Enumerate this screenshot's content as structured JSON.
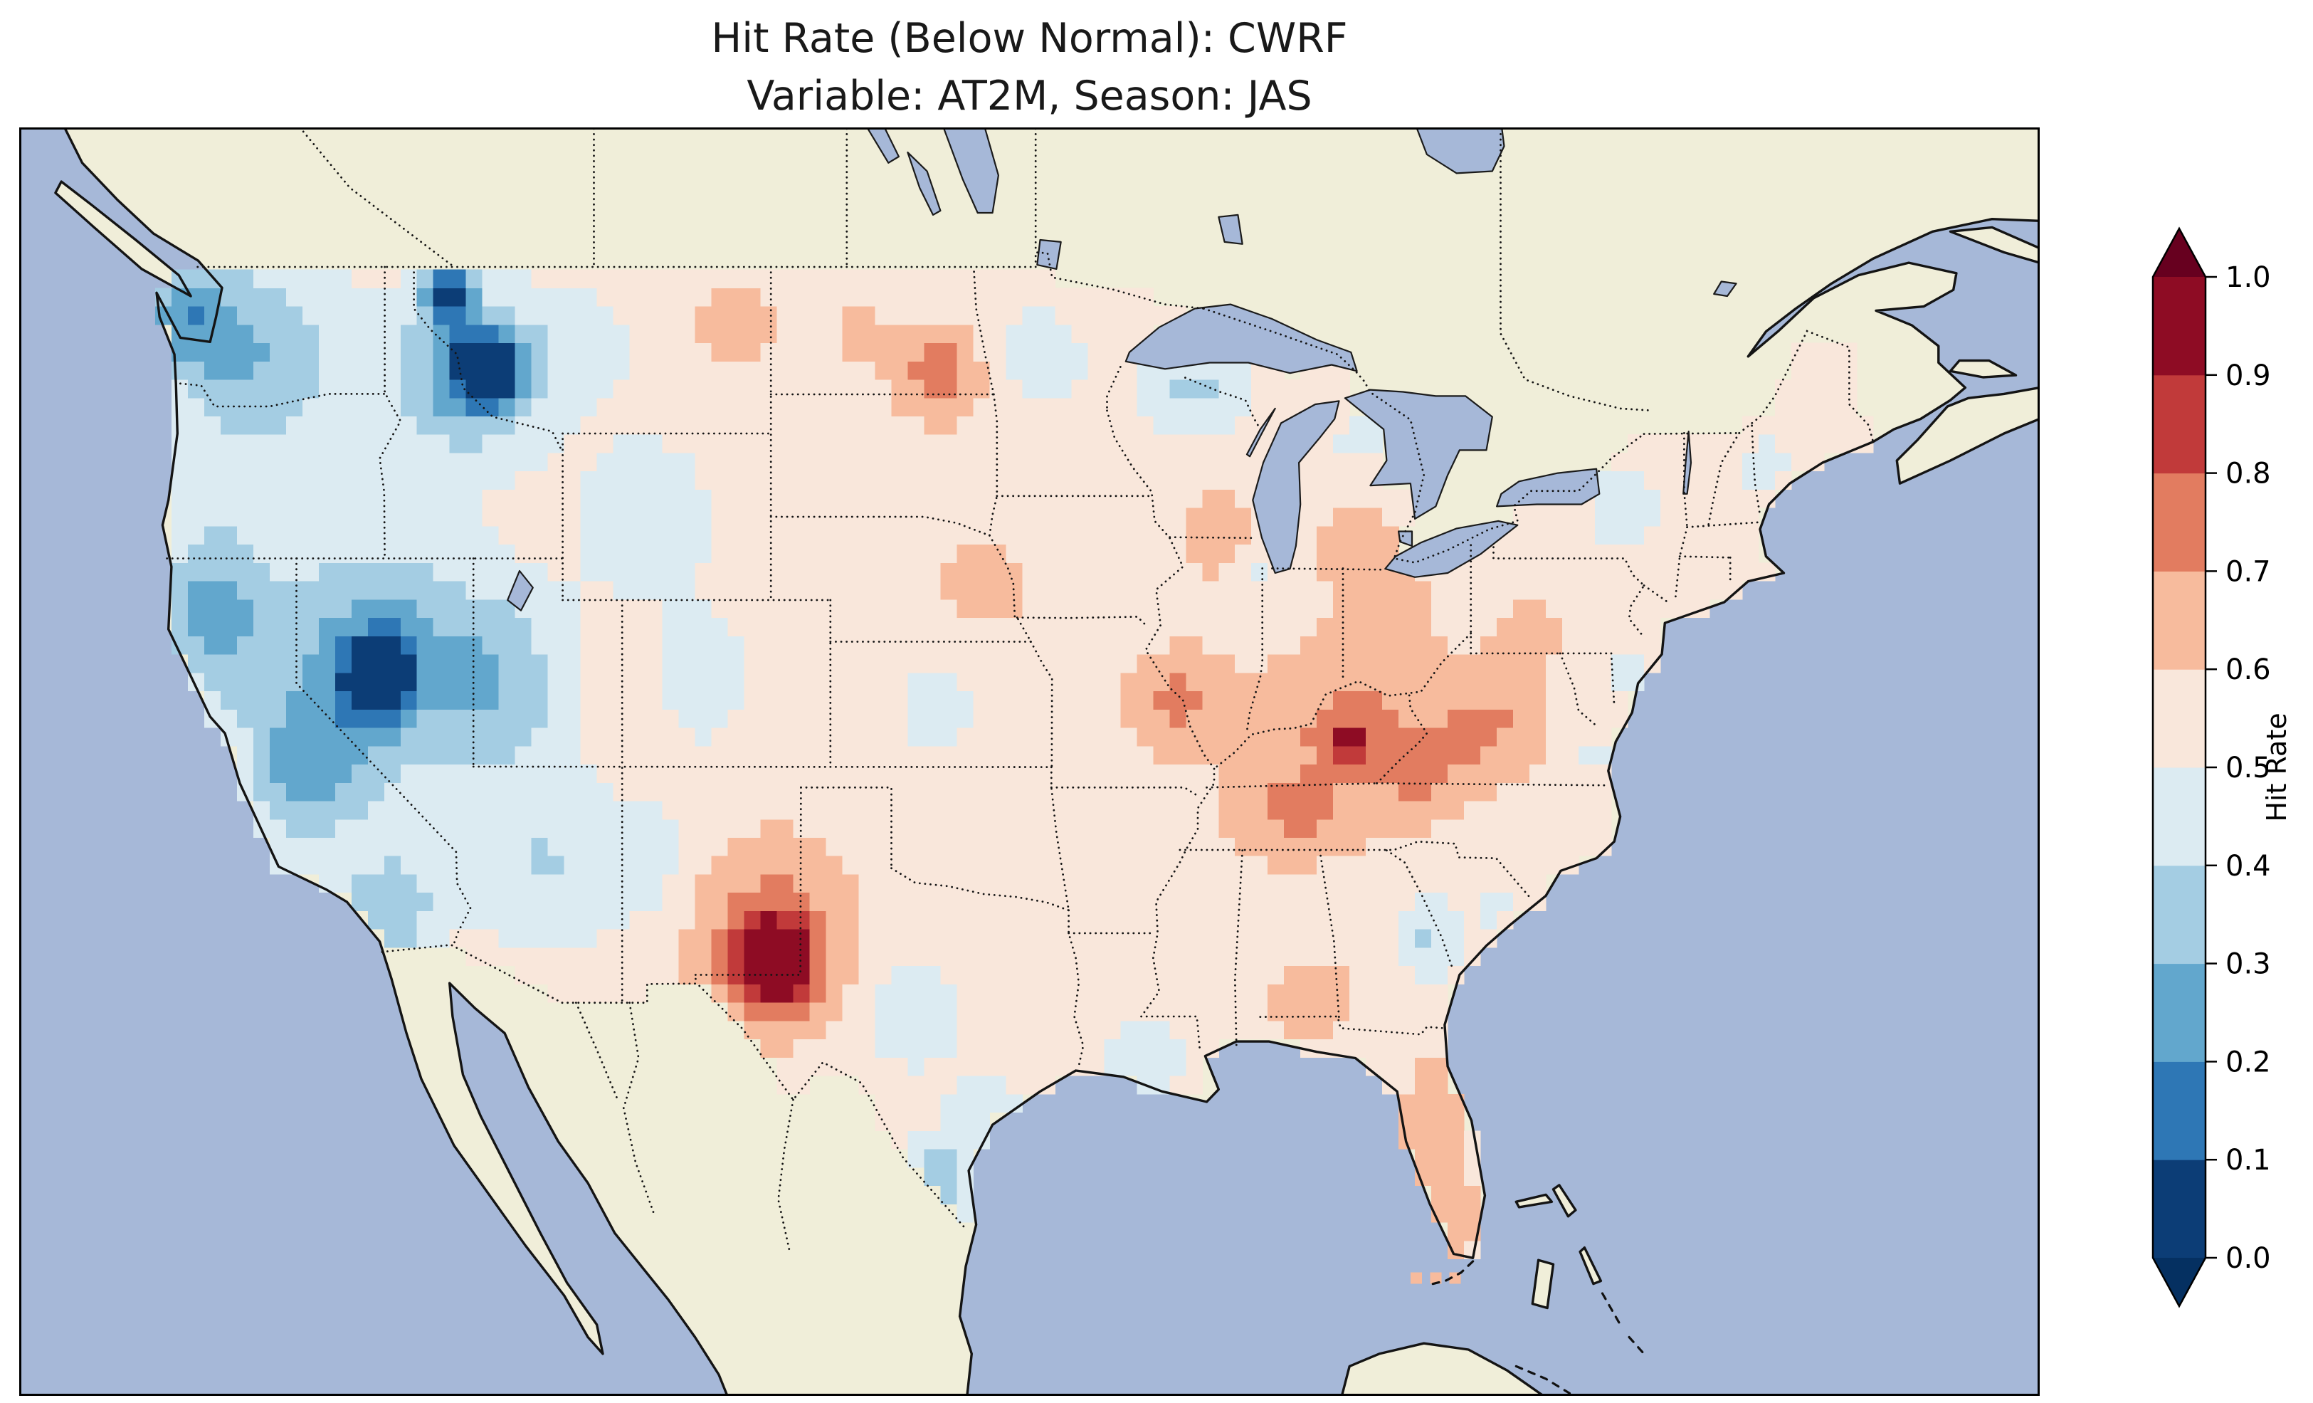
{
  "title": {
    "line1": "Hit Rate (Below Normal): CWRF",
    "line2": "Variable: AT2M, Season: JAS"
  },
  "map": {
    "ocean_color": "#a6b8d8",
    "land_color": "#f0eed9",
    "coast_color": "#141414",
    "border_color": "#141414",
    "frame_color": "#000000"
  },
  "colorbar": {
    "label": "Hit Rate",
    "ticks": [
      "0.0",
      "0.1",
      "0.2",
      "0.3",
      "0.4",
      "0.5",
      "0.6",
      "0.7",
      "0.8",
      "0.9",
      "1.0"
    ],
    "segment_colors": [
      "#0c3d76",
      "#2e77b5",
      "#62a7cd",
      "#a4cde3",
      "#dcebf2",
      "#f9e7db",
      "#f7bb9d",
      "#e27c60",
      "#c13a3a",
      "#8e0c24"
    ],
    "under_arrow_color": "#053061",
    "over_arrow_color": "#67001f"
  },
  "chart_data": {
    "type": "heatmap",
    "metric": "Hit Rate (Below Normal)",
    "model": "CWRF",
    "variable": "AT2M",
    "season": "JAS",
    "domain": "Contiguous United States",
    "value_range": [
      0.0,
      1.0
    ],
    "bin_width": 0.1,
    "colorbar_ticks": [
      0.0,
      0.1,
      0.2,
      0.3,
      0.4,
      0.5,
      0.6,
      0.7,
      0.8,
      0.9,
      1.0
    ],
    "base_value": 0.56,
    "grid_step_deg": {
      "lon": 0.55,
      "lat": 0.44
    },
    "regions": [
      {
        "name": "pacific-northwest",
        "lon": -121.5,
        "lat": 46.8,
        "slon": 3.0,
        "slat": 2.6,
        "value": 0.3
      },
      {
        "name": "washington-coast",
        "lon": -123.8,
        "lat": 47.8,
        "slon": 1.5,
        "slat": 1.2,
        "value": 0.33
      },
      {
        "name": "northern-california",
        "lon": -122.8,
        "lat": 40.8,
        "slon": 2.0,
        "slat": 2.2,
        "value": 0.28
      },
      {
        "name": "central-california",
        "lon": -119.8,
        "lat": 36.8,
        "slon": 2.2,
        "slat": 1.9,
        "value": 0.32
      },
      {
        "name": "southern-california",
        "lon": -116.8,
        "lat": 33.6,
        "slon": 1.8,
        "slat": 1.4,
        "value": 0.33
      },
      {
        "name": "nevada-broad",
        "lon": -117.4,
        "lat": 39.6,
        "slon": 3.4,
        "slat": 2.9,
        "value": 0.24
      },
      {
        "name": "nevada-dark-core",
        "lon": -117.3,
        "lat": 39.2,
        "slon": 1.05,
        "slat": 0.85,
        "value": 0.06
      },
      {
        "name": "montana-idaho-broad",
        "lon": -114.3,
        "lat": 46.4,
        "slon": 2.7,
        "slat": 2.1,
        "value": 0.26
      },
      {
        "name": "montana-idaho-dark-core",
        "lon": -113.6,
        "lat": 46.6,
        "slon": 1.15,
        "slat": 0.85,
        "value": 0.09
      },
      {
        "name": "northwest-montana-spot",
        "lon": -114.9,
        "lat": 48.4,
        "slon": 0.85,
        "slat": 0.7,
        "value": 0.17
      },
      {
        "name": "utah",
        "lon": -113.0,
        "lat": 39.0,
        "slon": 2.4,
        "slat": 2.4,
        "value": 0.36
      },
      {
        "name": "arizona",
        "lon": -111.6,
        "lat": 34.6,
        "slon": 2.4,
        "slat": 2.1,
        "value": 0.4
      },
      {
        "name": "wyoming",
        "lon": -108.3,
        "lat": 43.0,
        "slon": 2.3,
        "slat": 2.0,
        "value": 0.42
      },
      {
        "name": "colorado-rockies",
        "lon": -106.4,
        "lat": 39.2,
        "slon": 1.4,
        "slat": 1.6,
        "value": 0.42
      },
      {
        "name": "western-new-mexico",
        "lon": -108.2,
        "lat": 34.8,
        "slon": 1.4,
        "slat": 1.7,
        "value": 0.46
      },
      {
        "name": "eastern-colorado",
        "lon": -103.3,
        "lat": 39.6,
        "slon": 1.8,
        "slat": 1.6,
        "value": 0.52
      },
      {
        "name": "central-montana",
        "lon": -110.3,
        "lat": 47.2,
        "slon": 1.8,
        "slat": 1.4,
        "value": 0.46
      },
      {
        "name": "northeast-montana",
        "lon": -105.3,
        "lat": 47.6,
        "slon": 1.7,
        "slat": 1.1,
        "value": 0.63
      },
      {
        "name": "north-dakota-high",
        "lon": -98.4,
        "lat": 46.4,
        "slon": 1.35,
        "slat": 1.1,
        "value": 0.76
      },
      {
        "name": "west-north-dakota",
        "lon": -101.0,
        "lat": 47.3,
        "slon": 1.4,
        "slat": 1.0,
        "value": 0.62
      },
      {
        "name": "south-dakota",
        "lon": -100.3,
        "lat": 44.3,
        "slon": 1.9,
        "slat": 1.4,
        "value": 0.54
      },
      {
        "name": "nebraska-iowa",
        "lon": -96.8,
        "lat": 41.4,
        "slon": 2.2,
        "slat": 1.4,
        "value": 0.62
      },
      {
        "name": "kansas",
        "lon": -98.4,
        "lat": 38.4,
        "slon": 1.9,
        "slat": 1.4,
        "value": 0.47
      },
      {
        "name": "oklahoma",
        "lon": -98.8,
        "lat": 35.4,
        "slon": 1.6,
        "slat": 1.2,
        "value": 0.5
      },
      {
        "name": "central-texas",
        "lon": -99.3,
        "lat": 31.0,
        "slon": 1.6,
        "slat": 1.3,
        "value": 0.41
      },
      {
        "name": "south-texas",
        "lon": -98.4,
        "lat": 26.9,
        "slon": 1.25,
        "slat": 1.15,
        "value": 0.33
      },
      {
        "name": "texas-coast",
        "lon": -96.9,
        "lat": 28.7,
        "slon": 1.3,
        "slat": 1.0,
        "value": 0.44
      },
      {
        "name": "se-new-mexico-dark-core",
        "lon": -103.9,
        "lat": 32.3,
        "slon": 1.25,
        "slat": 1.05,
        "value": 0.98
      },
      {
        "name": "se-new-mexico-ring",
        "lon": -104.1,
        "lat": 32.9,
        "slon": 2.5,
        "slat": 2.1,
        "value": 0.76
      },
      {
        "name": "louisiana-gulf",
        "lon": -91.4,
        "lat": 30.0,
        "slon": 1.8,
        "slat": 0.95,
        "value": 0.44
      },
      {
        "name": "missouri-illinois",
        "lon": -90.4,
        "lat": 38.6,
        "slon": 1.45,
        "slat": 1.15,
        "value": 0.72
      },
      {
        "name": "ohio-valley",
        "lon": -84.6,
        "lat": 38.0,
        "slon": 3.4,
        "slat": 1.8,
        "value": 0.72
      },
      {
        "name": "kentucky-core",
        "lon": -84.6,
        "lat": 37.6,
        "slon": 0.6,
        "slat": 0.5,
        "value": 0.86
      },
      {
        "name": "tennessee",
        "lon": -86.6,
        "lat": 35.8,
        "slon": 2.2,
        "slat": 1.1,
        "value": 0.7
      },
      {
        "name": "virginia-west-virginia",
        "lon": -79.9,
        "lat": 38.0,
        "slon": 1.8,
        "slat": 1.3,
        "value": 0.7
      },
      {
        "name": "ohio",
        "lon": -83.4,
        "lat": 40.8,
        "slon": 1.5,
        "slat": 1.2,
        "value": 0.66
      },
      {
        "name": "southern-michigan",
        "lon": -84.4,
        "lat": 42.3,
        "slon": 1.4,
        "slat": 0.9,
        "value": 0.68
      },
      {
        "name": "wisconsin-illinois",
        "lon": -89.2,
        "lat": 42.6,
        "slon": 1.1,
        "slat": 0.9,
        "value": 0.68
      },
      {
        "name": "southern-pennsylvania",
        "lon": -78.4,
        "lat": 40.3,
        "slon": 1.6,
        "slat": 1.0,
        "value": 0.62
      },
      {
        "name": "upper-michigan",
        "lon": -89.9,
        "lat": 46.1,
        "slon": 1.9,
        "slat": 1.2,
        "value": 0.38
      },
      {
        "name": "minnesota",
        "lon": -94.9,
        "lat": 46.9,
        "slon": 1.6,
        "slat": 1.3,
        "value": 0.44
      },
      {
        "name": "chicago-area",
        "lon": -87.6,
        "lat": 41.6,
        "slon": 0.8,
        "slat": 0.7,
        "value": 0.48
      },
      {
        "name": "northeast-michigan",
        "lon": -84.2,
        "lat": 44.9,
        "slon": 1.0,
        "slat": 0.8,
        "value": 0.46
      },
      {
        "name": "upstate-new-york",
        "lon": -75.3,
        "lat": 43.2,
        "slon": 1.4,
        "slat": 1.0,
        "value": 0.43
      },
      {
        "name": "new-england",
        "lon": -70.7,
        "lat": 44.2,
        "slon": 1.3,
        "slat": 1.3,
        "value": 0.48
      },
      {
        "name": "northern-maine",
        "lon": -68.9,
        "lat": 46.6,
        "slon": 1.1,
        "slat": 1.0,
        "value": 0.52
      },
      {
        "name": "mid-atlantic-coast",
        "lon": -75.2,
        "lat": 39.4,
        "slon": 1.0,
        "slat": 0.8,
        "value": 0.47
      },
      {
        "name": "virginia-coast",
        "lon": -76.4,
        "lat": 37.3,
        "slon": 0.9,
        "slat": 0.7,
        "value": 0.48
      },
      {
        "name": "georgia-south-carolina",
        "lon": -81.9,
        "lat": 32.9,
        "slon": 1.15,
        "slat": 0.95,
        "value": 0.39
      },
      {
        "name": "carolina-coast",
        "lon": -79.6,
        "lat": 33.6,
        "slon": 1.0,
        "slat": 0.8,
        "value": 0.49
      },
      {
        "name": "alabama-georgia",
        "lon": -85.8,
        "lat": 31.4,
        "slon": 1.45,
        "slat": 1.0,
        "value": 0.66
      },
      {
        "name": "florida-peninsula",
        "lon": -81.6,
        "lat": 28.4,
        "slon": 1.05,
        "slat": 1.6,
        "value": 0.69
      },
      {
        "name": "south-florida",
        "lon": -80.9,
        "lat": 26.0,
        "slon": 0.9,
        "slat": 0.9,
        "value": 0.63
      },
      {
        "name": "arkansas",
        "lon": -92.8,
        "lat": 34.8,
        "slon": 1.6,
        "slat": 1.2,
        "value": 0.56
      },
      {
        "name": "appalachia-bridge",
        "lon": -82.2,
        "lat": 36.6,
        "slon": 1.5,
        "slat": 1.0,
        "value": 0.66
      }
    ],
    "offshore_cells": [
      {
        "lon": -82.35,
        "lat": 24.72,
        "value": 0.65
      },
      {
        "lon": -81.7,
        "lat": 24.72,
        "value": 0.65
      },
      {
        "lon": -81.05,
        "lat": 24.72,
        "value": 0.65
      }
    ]
  }
}
